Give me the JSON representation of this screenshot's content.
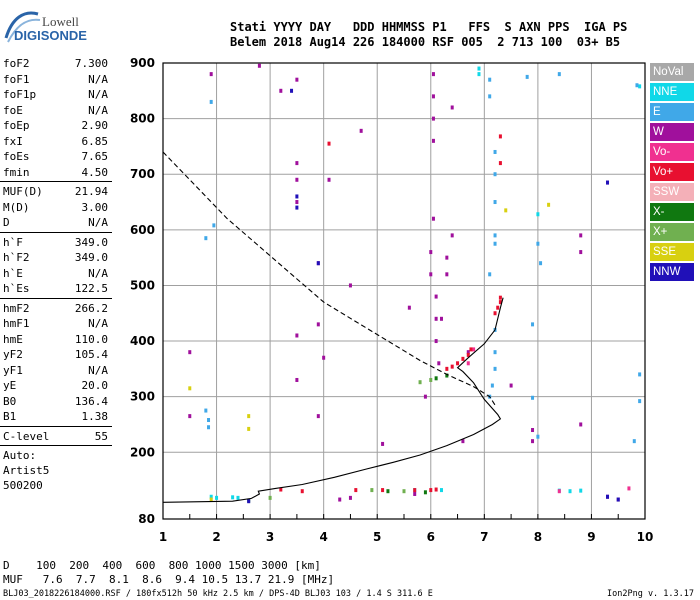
{
  "logo": {
    "line1": "Lowell",
    "line2": "DIGISONDE"
  },
  "header": {
    "line1": "Stati YYYY DAY   DDD HHMMSS P1   FFS  S AXN PPS  IGA PS",
    "line2": "Belem 2018 Aug14 226 184000 RSF 005  2 713 100  03+ B5"
  },
  "params": {
    "group1": [
      {
        "k": "foF2",
        "v": "7.300"
      },
      {
        "k": "foF1",
        "v": "N/A"
      },
      {
        "k": "foF1p",
        "v": "N/A"
      },
      {
        "k": "foE",
        "v": "N/A"
      },
      {
        "k": "foEp",
        "v": "2.90"
      },
      {
        "k": "fxI",
        "v": "6.85"
      },
      {
        "k": "foEs",
        "v": "7.65"
      },
      {
        "k": "fmin",
        "v": "4.50"
      }
    ],
    "group2": [
      {
        "k": "MUF(D)",
        "v": "21.94"
      },
      {
        "k": "M(D)",
        "v": "3.00"
      },
      {
        "k": "D",
        "v": "N/A"
      }
    ],
    "group3": [
      {
        "k": "h`F",
        "v": "349.0"
      },
      {
        "k": "h`F2",
        "v": "349.0"
      },
      {
        "k": "h`E",
        "v": "N/A"
      },
      {
        "k": "h`Es",
        "v": "122.5"
      }
    ],
    "group4": [
      {
        "k": "hmF2",
        "v": "266.2"
      },
      {
        "k": "hmF1",
        "v": "N/A"
      },
      {
        "k": "hmE",
        "v": "110.0"
      },
      {
        "k": "yF2",
        "v": "105.4"
      },
      {
        "k": "yF1",
        "v": "N/A"
      },
      {
        "k": "yE",
        "v": "20.0"
      },
      {
        "k": "B0",
        "v": "136.4"
      },
      {
        "k": "B1",
        "v": "1.38"
      }
    ],
    "group5": [
      {
        "k": "C-level",
        "v": "55"
      }
    ],
    "text_lines": [
      "Auto:",
      "Artist5",
      "500200"
    ]
  },
  "legend": [
    {
      "label": "NoVal",
      "color": "#a8a8a8"
    },
    {
      "label": "NNE",
      "color": "#10d8e8"
    },
    {
      "label": "E",
      "color": "#40a8e8"
    },
    {
      "label": "W",
      "color": "#a0109c"
    },
    {
      "label": "Vo-",
      "color": "#f03090"
    },
    {
      "label": "Vo+",
      "color": "#e81030"
    },
    {
      "label": "SSW",
      "color": "#f4b0b8"
    },
    {
      "label": "X-",
      "color": "#107810"
    },
    {
      "label": "X+",
      "color": "#70b050"
    },
    {
      "label": "SSE",
      "color": "#d8d010"
    },
    {
      "label": "NNW",
      "color": "#2010b8"
    }
  ],
  "bottom": {
    "line1": "D    100  200  400  600  800 1000 1500 3000 [km]",
    "line2": "MUF   7.6  7.7  8.1  8.6  9.4 10.5 13.7 21.9 [MHz]",
    "footer": "BLJ03_2018226184000.RSF / 180fx512h 50 kHz 2.5 km / DPS-4D BLJ03 103 / 1.4 S 311.6 E",
    "version": "Ion2Png v. 1.3.17"
  },
  "chart_data": {
    "type": "scatter",
    "title": "",
    "xlabel": "",
    "ylabel": "",
    "xlim": [
      1,
      10
    ],
    "ylim": [
      80,
      900
    ],
    "x_ticks": [
      1,
      2,
      3,
      4,
      5,
      6,
      7,
      8,
      9,
      10
    ],
    "y_ticks": [
      80,
      200,
      300,
      400,
      500,
      600,
      700,
      800,
      900
    ],
    "grid": true,
    "legend_position": "right",
    "series": [
      {
        "name": "NNE",
        "color": "#10d8e8",
        "points": [
          [
            1.9,
            120
          ],
          [
            2.0,
            118
          ],
          [
            2.3,
            119
          ],
          [
            2.4,
            118
          ],
          [
            5.7,
            132
          ],
          [
            6.2,
            132
          ],
          [
            6.9,
            880
          ],
          [
            6.9,
            890
          ],
          [
            8.0,
            628
          ],
          [
            8.6,
            130
          ],
          [
            8.8,
            131
          ],
          [
            8.4,
            131
          ],
          [
            9.9,
            858
          ]
        ]
      },
      {
        "name": "E",
        "color": "#40a8e8",
        "points": [
          [
            1.8,
            275
          ],
          [
            1.85,
            258
          ],
          [
            1.85,
            245
          ],
          [
            1.9,
            830
          ],
          [
            1.8,
            585
          ],
          [
            1.95,
            608
          ],
          [
            7.1,
            300
          ],
          [
            7.15,
            320
          ],
          [
            7.2,
            350
          ],
          [
            7.2,
            380
          ],
          [
            7.2,
            420
          ],
          [
            7.2,
            650
          ],
          [
            7.2,
            700
          ],
          [
            7.2,
            740
          ],
          [
            7.1,
            840
          ],
          [
            7.1,
            870
          ],
          [
            7.2,
            575
          ],
          [
            7.2,
            590
          ],
          [
            9.9,
            340
          ],
          [
            9.9,
            292
          ],
          [
            9.8,
            220
          ],
          [
            9.85,
            860
          ],
          [
            7.8,
            875
          ],
          [
            7.9,
            430
          ],
          [
            7.9,
            298
          ],
          [
            7.1,
            520
          ],
          [
            8.4,
            880
          ],
          [
            8.05,
            540
          ],
          [
            8.0,
            575
          ],
          [
            8.0,
            228
          ]
        ]
      },
      {
        "name": "W",
        "color": "#a0109c",
        "points": [
          [
            1.5,
            265
          ],
          [
            1.5,
            380
          ],
          [
            1.9,
            880
          ],
          [
            2.8,
            895
          ],
          [
            3.2,
            850
          ],
          [
            3.5,
            870
          ],
          [
            3.5,
            690
          ],
          [
            3.5,
            650
          ],
          [
            3.5,
            720
          ],
          [
            3.5,
            410
          ],
          [
            3.5,
            330
          ],
          [
            3.9,
            540
          ],
          [
            3.9,
            430
          ],
          [
            3.9,
            265
          ],
          [
            4.0,
            370
          ],
          [
            4.1,
            690
          ],
          [
            4.5,
            500
          ],
          [
            4.7,
            778
          ],
          [
            5.1,
            215
          ],
          [
            5.6,
            460
          ],
          [
            5.9,
            300
          ],
          [
            6.0,
            520
          ],
          [
            6.0,
            560
          ],
          [
            6.05,
            620
          ],
          [
            6.05,
            760
          ],
          [
            6.05,
            800
          ],
          [
            6.05,
            840
          ],
          [
            6.05,
            880
          ],
          [
            6.1,
            480
          ],
          [
            6.1,
            440
          ],
          [
            6.1,
            400
          ],
          [
            6.15,
            360
          ],
          [
            6.2,
            440
          ],
          [
            6.3,
            520
          ],
          [
            6.3,
            550
          ],
          [
            6.4,
            590
          ],
          [
            6.4,
            820
          ],
          [
            6.6,
            220
          ],
          [
            6.7,
            380
          ],
          [
            7.5,
            320
          ],
          [
            7.9,
            240
          ],
          [
            7.9,
            220
          ],
          [
            8.8,
            250
          ],
          [
            8.8,
            560
          ],
          [
            8.8,
            590
          ],
          [
            9.3,
            685
          ],
          [
            9.3,
            120
          ],
          [
            9.5,
            115
          ],
          [
            5.7,
            125
          ],
          [
            4.3,
            115
          ],
          [
            4.5,
            118
          ]
        ]
      },
      {
        "name": "Vo-",
        "color": "#f03090",
        "points": [
          [
            6.8,
            385
          ],
          [
            6.7,
            360
          ],
          [
            8.4,
            130
          ],
          [
            9.7,
            135
          ]
        ]
      },
      {
        "name": "Vo+",
        "color": "#e81030",
        "points": [
          [
            6.3,
            350
          ],
          [
            6.4,
            354
          ],
          [
            6.5,
            360
          ],
          [
            6.6,
            368
          ],
          [
            6.7,
            375
          ],
          [
            6.75,
            385
          ],
          [
            7.2,
            450
          ],
          [
            7.25,
            460
          ],
          [
            7.3,
            470
          ],
          [
            7.3,
            478
          ],
          [
            7.3,
            768
          ],
          [
            7.3,
            720
          ],
          [
            4.1,
            755
          ],
          [
            6.0,
            132
          ],
          [
            6.1,
            133
          ],
          [
            5.1,
            132
          ],
          [
            3.2,
            133
          ],
          [
            3.6,
            130
          ],
          [
            4.6,
            132
          ],
          [
            5.7,
            132
          ]
        ]
      },
      {
        "name": "X-",
        "color": "#107810",
        "points": [
          [
            6.1,
            333
          ],
          [
            6.3,
            338
          ],
          [
            5.9,
            128
          ],
          [
            5.2,
            130
          ],
          [
            2.6,
            113
          ]
        ]
      },
      {
        "name": "X+",
        "color": "#70b050",
        "points": [
          [
            6.0,
            330
          ],
          [
            5.8,
            326
          ],
          [
            4.9,
            132
          ],
          [
            5.5,
            130
          ],
          [
            3.0,
            118
          ]
        ]
      },
      {
        "name": "SSE",
        "color": "#d8d010",
        "points": [
          [
            1.5,
            315
          ],
          [
            2.6,
            265
          ],
          [
            2.6,
            242
          ],
          [
            7.4,
            635
          ],
          [
            8.2,
            645
          ],
          [
            1.9,
            115
          ]
        ]
      },
      {
        "name": "NNW",
        "color": "#2010b8",
        "points": [
          [
            3.4,
            850
          ],
          [
            3.5,
            640
          ],
          [
            3.5,
            660
          ],
          [
            3.9,
            540
          ],
          [
            9.3,
            685
          ],
          [
            9.3,
            120
          ],
          [
            9.5,
            115
          ],
          [
            2.6,
            112
          ]
        ]
      }
    ],
    "line": {
      "name": "Auto-scaled trace",
      "style": "solid",
      "points": [
        [
          1,
          110
        ],
        [
          2.3,
          112
        ],
        [
          2.65,
          117
        ],
        [
          2.8,
          125
        ],
        [
          2.78,
          130
        ],
        [
          3.1,
          135
        ],
        [
          3.6,
          142
        ],
        [
          4.2,
          155
        ],
        [
          4.8,
          170
        ],
        [
          5.3,
          182
        ],
        [
          5.8,
          195
        ],
        [
          6.3,
          212
        ],
        [
          6.8,
          232
        ],
        [
          7.15,
          250
        ],
        [
          7.3,
          260
        ],
        [
          7.25,
          268
        ],
        [
          7.0,
          295
        ],
        [
          6.8,
          325
        ],
        [
          6.6,
          345
        ],
        [
          6.5,
          352
        ],
        [
          6.7,
          370
        ],
        [
          7.0,
          395
        ],
        [
          7.2,
          420
        ],
        [
          7.3,
          460
        ],
        [
          7.35,
          478
        ]
      ]
    },
    "dashed_line": {
      "name": "Model profile",
      "style": "dashed",
      "points": [
        [
          1,
          740
        ],
        [
          1.6,
          680
        ],
        [
          2.2,
          620
        ],
        [
          2.8,
          570
        ],
        [
          3.4,
          520
        ],
        [
          4.0,
          470
        ],
        [
          4.6,
          435
        ],
        [
          5.2,
          400
        ],
        [
          5.8,
          365
        ],
        [
          6.3,
          340
        ],
        [
          6.8,
          318
        ],
        [
          7.1,
          300
        ],
        [
          7.2,
          285
        ]
      ]
    }
  }
}
